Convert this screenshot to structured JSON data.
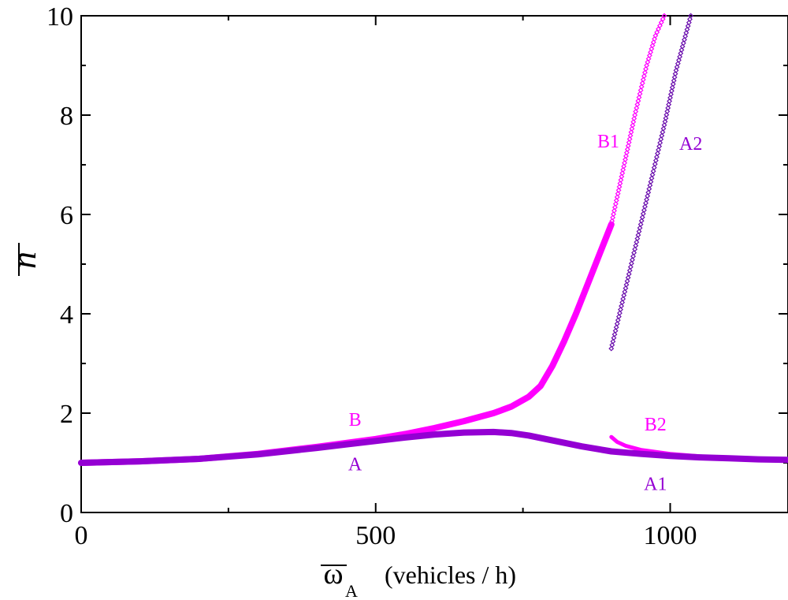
{
  "chart_data": {
    "type": "scatter",
    "xlabel": "(vehicles / h)",
    "xlabel_symbol": "ω",
    "xlabel_subscript": "A",
    "ylabel": "n",
    "xlim": [
      0,
      1200
    ],
    "ylim": [
      0,
      10
    ],
    "x_ticks": [
      0,
      500,
      1000
    ],
    "y_ticks": [
      0,
      2,
      4,
      6,
      8,
      10
    ],
    "x_tick_labels": [
      "0",
      "500",
      "1000"
    ],
    "y_tick_labels": [
      "0",
      "2",
      "4",
      "6",
      "8",
      "10"
    ],
    "grid": false,
    "legend": "none",
    "colors": {
      "magenta": "#ff00ff",
      "violet": "#9400d3",
      "indigo": "#6a0dad"
    },
    "series": [
      {
        "name": "B",
        "color": "#ff00ff",
        "style": "thick",
        "x": [
          0,
          100,
          200,
          300,
          400,
          450,
          500,
          550,
          600,
          650,
          700,
          730,
          760,
          780,
          800,
          820,
          840,
          860,
          880,
          900
        ],
        "y": [
          1.0,
          1.03,
          1.08,
          1.18,
          1.32,
          1.4,
          1.48,
          1.58,
          1.7,
          1.84,
          2.0,
          2.13,
          2.33,
          2.55,
          2.95,
          3.45,
          4.0,
          4.6,
          5.2,
          5.8
        ]
      },
      {
        "name": "A",
        "color": "#9400d3",
        "style": "thick",
        "x": [
          0,
          100,
          200,
          300,
          400,
          450,
          500,
          550,
          600,
          650,
          700,
          730,
          760,
          800,
          850,
          900,
          950,
          1000,
          1050,
          1100,
          1150,
          1200
        ],
        "y": [
          1.0,
          1.03,
          1.08,
          1.17,
          1.3,
          1.37,
          1.44,
          1.51,
          1.57,
          1.61,
          1.62,
          1.6,
          1.55,
          1.45,
          1.33,
          1.23,
          1.18,
          1.14,
          1.11,
          1.09,
          1.07,
          1.06
        ]
      },
      {
        "name": "B1",
        "color": "#ff00ff",
        "style": "markers",
        "x": [
          900,
          920,
          940,
          960,
          975,
          990
        ],
        "y": [
          5.8,
          6.9,
          8.0,
          9.0,
          9.6,
          10.0
        ]
      },
      {
        "name": "A2",
        "color": "#6a0dad",
        "style": "markers",
        "x": [
          900,
          910,
          930,
          950,
          970,
          990,
          1010,
          1035
        ],
        "y": [
          3.3,
          3.8,
          4.8,
          5.8,
          6.8,
          7.8,
          8.9,
          10.0
        ]
      },
      {
        "name": "B2",
        "color": "#ff00ff",
        "style": "medium",
        "x": [
          900,
          910,
          925,
          950,
          1000,
          1050,
          1100,
          1150,
          1200
        ],
        "y": [
          1.52,
          1.42,
          1.34,
          1.26,
          1.18,
          1.13,
          1.1,
          1.08,
          1.07
        ]
      }
    ],
    "annotations": [
      {
        "text": "B",
        "x": 465,
        "y": 1.75,
        "color": "#ff00ff"
      },
      {
        "text": "A",
        "x": 465,
        "y": 0.85,
        "color": "#9400d3"
      },
      {
        "text": "B1",
        "x": 895,
        "y": 7.35,
        "color": "#ff00ff"
      },
      {
        "text": "A2",
        "x": 1035,
        "y": 7.3,
        "color": "#9400d3"
      },
      {
        "text": "B2",
        "x": 975,
        "y": 1.65,
        "color": "#ff00ff"
      },
      {
        "text": "A1",
        "x": 975,
        "y": 0.45,
        "color": "#9400d3"
      }
    ]
  }
}
